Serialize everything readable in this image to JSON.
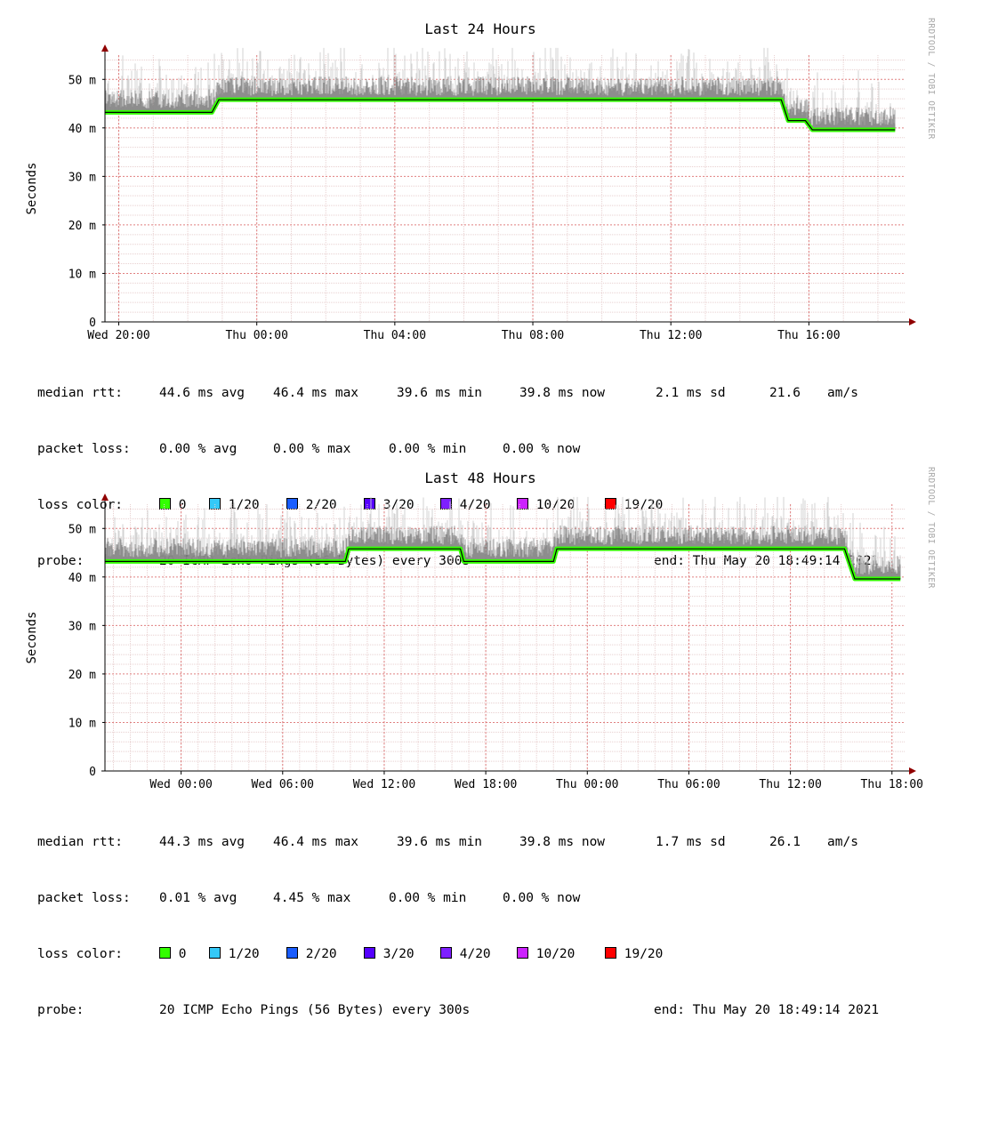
{
  "watermark": "RRDTOOL / TOBI OETIKER",
  "colors": {
    "grid_major": "#e08080",
    "grid_minor": "#e8d0d0",
    "median": "#000000",
    "axis": "#000000",
    "arrow": "#900000",
    "smoke_dark": "#555555",
    "smoke_light": "#cfcfcf"
  },
  "legend_colors": [
    "#33ff00",
    "#34c9f8",
    "#1a5dff",
    "#5500ff",
    "#7e1fff",
    "#cc22ff",
    "#ff0000"
  ],
  "chart_data": [
    {
      "type": "line",
      "title": "Last 24 Hours",
      "ylabel": "Seconds",
      "y_unit": "m",
      "yticks": [
        "0",
        "10 m",
        "20 m",
        "30 m",
        "40 m",
        "50 m"
      ],
      "ylim": [
        0,
        0.055
      ],
      "x_range_hours": [
        -23.2,
        0
      ],
      "xticks": [
        {
          "label": "Wed 20:00",
          "h": -22.8
        },
        {
          "label": "Thu 00:00",
          "h": -18.8
        },
        {
          "label": "Thu 04:00",
          "h": -14.8
        },
        {
          "label": "Thu 08:00",
          "h": -10.8
        },
        {
          "label": "Thu 12:00",
          "h": -6.8
        },
        {
          "label": "Thu 16:00",
          "h": -2.8
        }
      ],
      "median_series": [
        [
          -23.2,
          0.0432
        ],
        [
          -20.1,
          0.0432
        ],
        [
          -19.9,
          0.0458
        ],
        [
          -3.6,
          0.0458
        ],
        [
          -3.4,
          0.0415
        ],
        [
          -2.9,
          0.0415
        ],
        [
          -2.7,
          0.0396
        ],
        [
          -0.3,
          0.0396
        ]
      ],
      "stats": {
        "rtt": {
          "label": "median rtt:",
          "avg": "44.6 ms avg",
          "max": "46.4 ms max",
          "min": "39.6 ms min",
          "now": "39.8 ms now",
          "sd": "2.1 ms sd",
          "ams": "21.6",
          "ams_unit": "am/s"
        },
        "loss": {
          "label": "packet loss:",
          "avg": "0.00 % avg",
          "max": "0.00 % max",
          "min": "0.00 % min",
          "now": "0.00 % now"
        },
        "loss_color": {
          "label": "loss color:",
          "items": [
            "0",
            "1/20",
            "2/20",
            "3/20",
            "4/20",
            "10/20",
            "19/20"
          ]
        },
        "probe": {
          "label": "probe:",
          "value": "20 ICMP Echo Pings (56 Bytes) every 300s",
          "end": "end: Thu May 20 18:49:14 2021"
        }
      }
    },
    {
      "type": "line",
      "title": "Last 48 Hours",
      "ylabel": "Seconds",
      "y_unit": "m",
      "yticks": [
        "0",
        "10 m",
        "20 m",
        "30 m",
        "40 m",
        "50 m"
      ],
      "ylim": [
        0,
        0.055
      ],
      "x_range_hours": [
        -47.3,
        0
      ],
      "xticks": [
        {
          "label": "Wed 00:00",
          "h": -42.8
        },
        {
          "label": "Wed 06:00",
          "h": -36.8
        },
        {
          "label": "Wed 12:00",
          "h": -30.8
        },
        {
          "label": "Wed 18:00",
          "h": -24.8
        },
        {
          "label": "Thu 00:00",
          "h": -18.8
        },
        {
          "label": "Thu 06:00",
          "h": -12.8
        },
        {
          "label": "Thu 12:00",
          "h": -6.8
        },
        {
          "label": "Thu 18:00",
          "h": -0.8
        }
      ],
      "median_series": [
        [
          -47.3,
          0.0432
        ],
        [
          -33.1,
          0.0432
        ],
        [
          -32.9,
          0.0458
        ],
        [
          -26.3,
          0.0458
        ],
        [
          -26.1,
          0.0432
        ],
        [
          -20.8,
          0.0432
        ],
        [
          -20.6,
          0.0458
        ],
        [
          -3.6,
          0.0458
        ],
        [
          -3.0,
          0.0396
        ],
        [
          -0.3,
          0.0396
        ]
      ],
      "stats": {
        "rtt": {
          "label": "median rtt:",
          "avg": "44.3 ms avg",
          "max": "46.4 ms max",
          "min": "39.6 ms min",
          "now": "39.8 ms now",
          "sd": "1.7 ms sd",
          "ams": "26.1",
          "ams_unit": "am/s"
        },
        "loss": {
          "label": "packet loss:",
          "avg": "0.01 % avg",
          "max": "4.45 % max",
          "min": "0.00 % min",
          "now": "0.00 % now"
        },
        "loss_color": {
          "label": "loss color:",
          "items": [
            "0",
            "1/20",
            "2/20",
            "3/20",
            "4/20",
            "10/20",
            "19/20"
          ]
        },
        "probe": {
          "label": "probe:",
          "value": "20 ICMP Echo Pings (56 Bytes) every 300s",
          "end": "end: Thu May 20 18:49:14 2021"
        }
      }
    }
  ]
}
